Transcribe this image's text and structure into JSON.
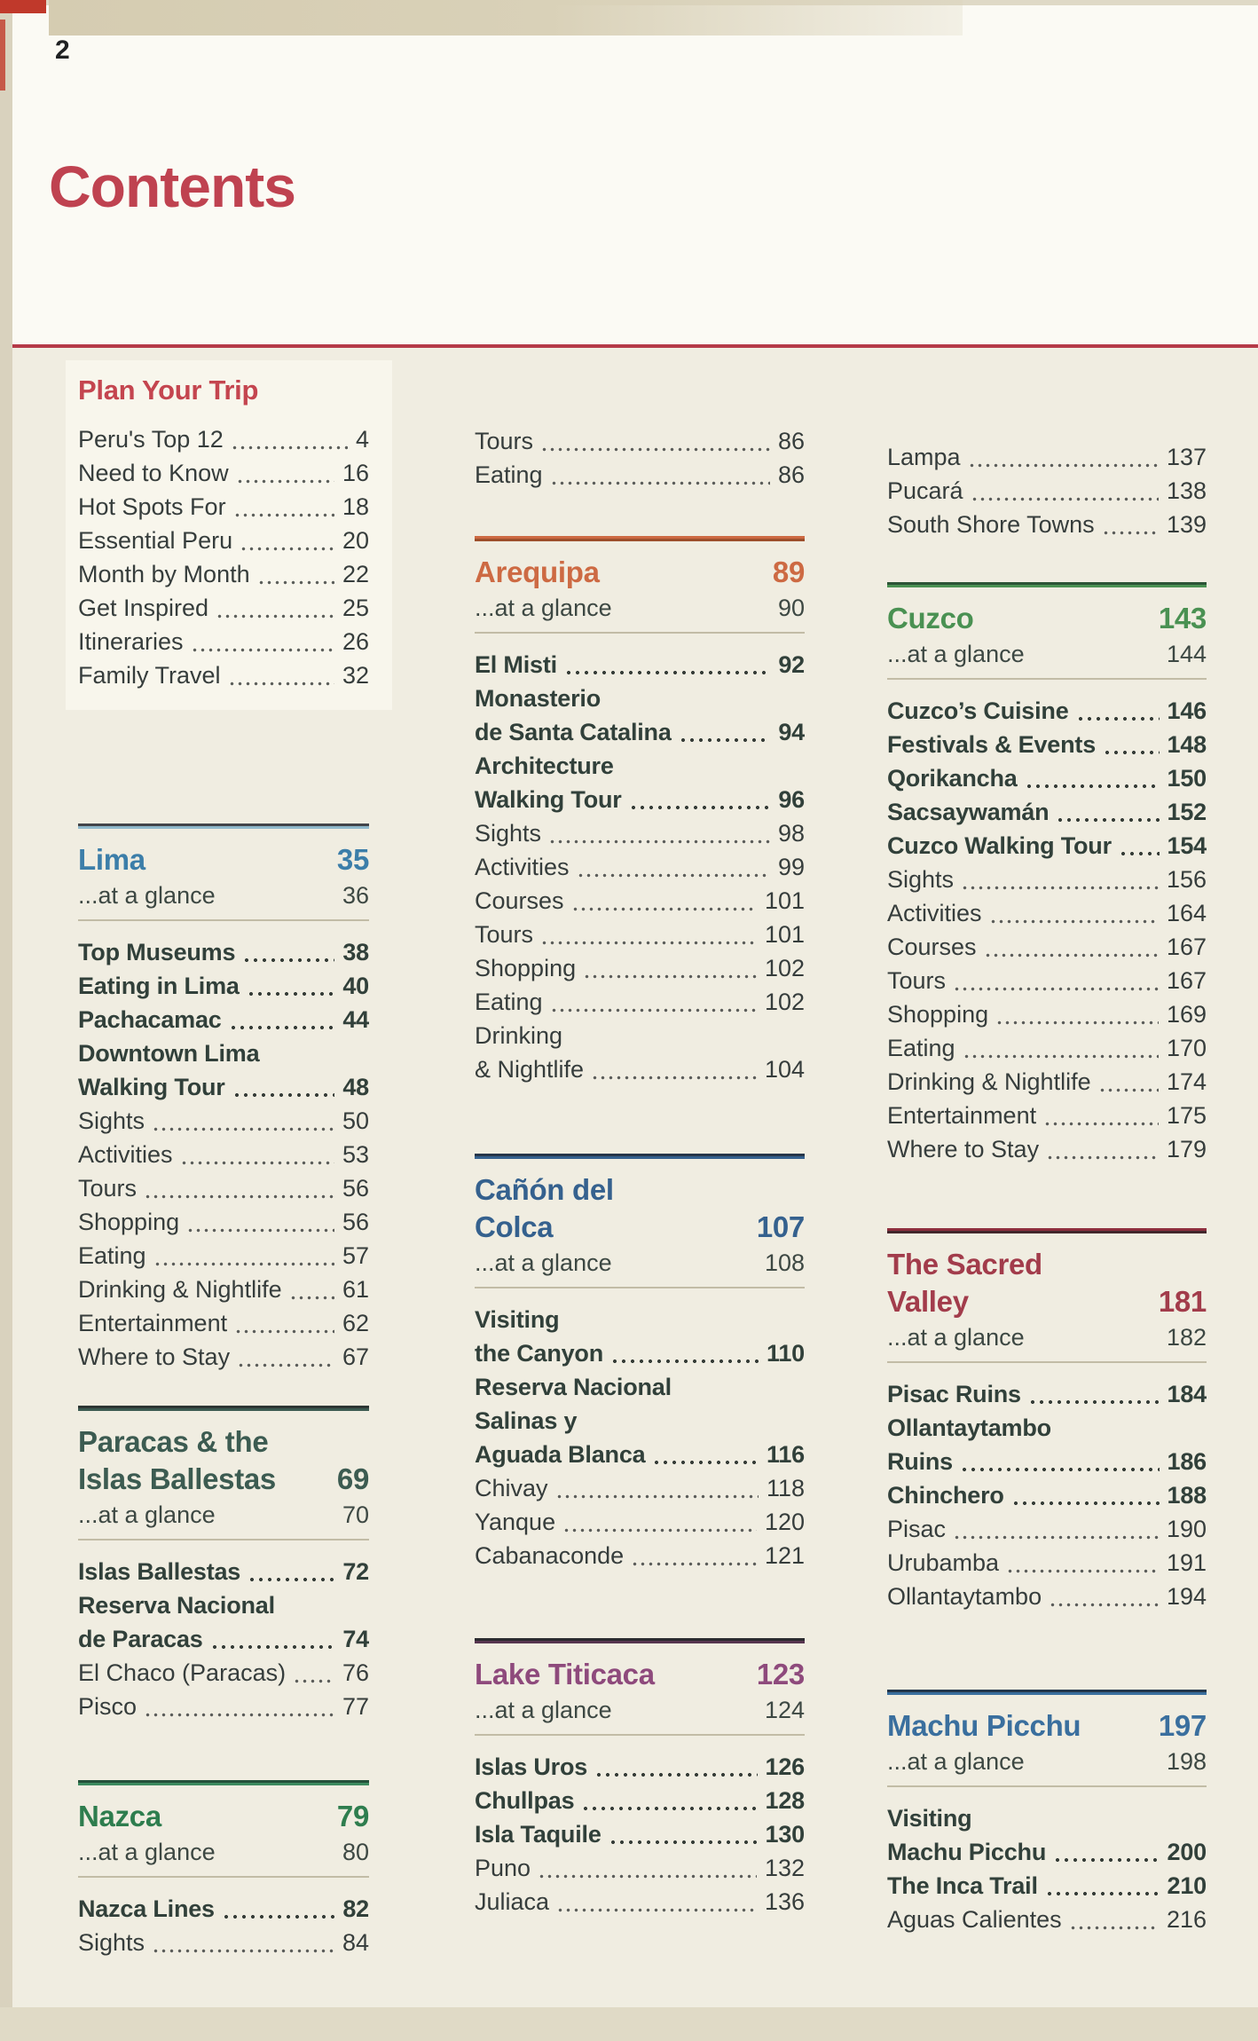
{
  "page": {
    "number": "2",
    "title": "Contents"
  },
  "colors": {
    "title_red": "#bf4250",
    "rule_red": "#b53a48",
    "cream_bg": "#f0ede1",
    "bold_entry": "#31403a",
    "regular_entry": "#363d3c"
  },
  "columns": [
    {
      "blocks": [
        {
          "kind": "intro",
          "slug": "plan",
          "accent": "#c4454f",
          "title": "Plan Your Trip",
          "items": [
            {
              "label": "Peru's Top 12",
              "page": "4"
            },
            {
              "label": "Need to Know",
              "page": "16"
            },
            {
              "label": "Hot Spots For",
              "page": "18"
            },
            {
              "label": "Essential Peru",
              "page": "20"
            },
            {
              "label": "Month by Month",
              "page": "22"
            },
            {
              "label": "Get Inspired",
              "page": "25"
            },
            {
              "label": "Itineraries",
              "page": "26"
            },
            {
              "label": "Family Travel",
              "page": "32"
            }
          ]
        },
        {
          "kind": "section",
          "slug": "lima",
          "accent": "#3c7ea9",
          "rule": [
            "#43454a",
            "#8fb9cb"
          ],
          "title_lines": [
            {
              "text": "Lima",
              "page": "35"
            }
          ],
          "glance": {
            "label": "...at a glance",
            "page": "36"
          },
          "items": [
            {
              "label": "Top Museums",
              "page": "38",
              "bold": true
            },
            {
              "label": "Eating in Lima",
              "page": "40",
              "bold": true
            },
            {
              "label": "Pachacamac",
              "page": "44",
              "bold": true
            },
            {
              "label": "Downtown Lima",
              "bold": true,
              "leader": false
            },
            {
              "label": "Walking Tour",
              "page": "48",
              "bold": true
            },
            {
              "label": "Sights",
              "page": "50"
            },
            {
              "label": "Activities",
              "page": "53"
            },
            {
              "label": "Tours",
              "page": "56"
            },
            {
              "label": "Shopping",
              "page": "56"
            },
            {
              "label": "Eating",
              "page": "57"
            },
            {
              "label": "Drinking & Nightlife",
              "page": "61"
            },
            {
              "label": "Entertainment",
              "page": "62"
            },
            {
              "label": "Where to Stay",
              "page": "67"
            }
          ]
        },
        {
          "kind": "section",
          "slug": "paracas",
          "accent": "#3c5b51",
          "rule": [
            "#2d3633",
            "#3c5b51"
          ],
          "title_lines": [
            {
              "text": "Paracas & the"
            },
            {
              "text": "Islas Ballestas",
              "page": "69"
            }
          ],
          "glance": {
            "label": "...at a glance",
            "page": "70"
          },
          "items": [
            {
              "label": "Islas Ballestas",
              "page": "72",
              "bold": true
            },
            {
              "label": "Reserva Nacional",
              "bold": true,
              "leader": false
            },
            {
              "label": "de Paracas",
              "page": "74",
              "bold": true
            },
            {
              "label": "El Chaco (Paracas)",
              "page": "76"
            },
            {
              "label": "Pisco",
              "page": "77"
            }
          ]
        },
        {
          "kind": "section",
          "slug": "nazca",
          "accent": "#2e7d4e",
          "rule": [
            "#24513a",
            "#3c8a5e"
          ],
          "title_lines": [
            {
              "text": "Nazca",
              "page": "79"
            }
          ],
          "glance": {
            "label": "...at a glance",
            "page": "80"
          },
          "items": [
            {
              "label": "Nazca Lines",
              "page": "82",
              "bold": true
            },
            {
              "label": "Sights",
              "page": "84"
            }
          ]
        }
      ]
    },
    {
      "blocks": [
        {
          "kind": "list",
          "slug": "tours-eating",
          "items": [
            {
              "label": "Tours",
              "page": "86"
            },
            {
              "label": "Eating",
              "page": "86"
            }
          ]
        },
        {
          "kind": "section",
          "slug": "arequipa",
          "accent": "#cd6a43",
          "rule": [
            "#cd6a43",
            "#9c4f2c"
          ],
          "title_lines": [
            {
              "text": "Arequipa",
              "page": "89"
            }
          ],
          "glance": {
            "label": "...at a glance",
            "page": "90"
          },
          "items": [
            {
              "label": "El Misti",
              "page": "92",
              "bold": true
            },
            {
              "label": "Monasterio",
              "bold": true,
              "leader": false
            },
            {
              "label": "de Santa Catalina",
              "page": "94",
              "bold": true
            },
            {
              "label": "Architecture",
              "bold": true,
              "leader": false
            },
            {
              "label": "Walking Tour",
              "page": "96",
              "bold": true
            },
            {
              "label": "Sights",
              "page": "98"
            },
            {
              "label": "Activities",
              "page": "99"
            },
            {
              "label": "Courses",
              "page": "101"
            },
            {
              "label": "Tours",
              "page": "101"
            },
            {
              "label": "Shopping",
              "page": "102"
            },
            {
              "label": "Eating",
              "page": "102"
            },
            {
              "label": "Drinking",
              "leader": false
            },
            {
              "label": "& Nightlife",
              "page": "104"
            }
          ]
        },
        {
          "kind": "section",
          "slug": "canon",
          "accent": "#35618e",
          "rule": [
            "#263649",
            "#35618e"
          ],
          "title_lines": [
            {
              "text": "Cañón del"
            },
            {
              "text": "Colca",
              "page": "107"
            }
          ],
          "glance": {
            "label": "...at a glance",
            "page": "108"
          },
          "items": [
            {
              "label": "Visiting",
              "bold": true,
              "leader": false
            },
            {
              "label": "the Canyon",
              "page": "110",
              "bold": true
            },
            {
              "label": "Reserva Nacional",
              "bold": true,
              "leader": false
            },
            {
              "label": "Salinas y",
              "bold": true,
              "leader": false
            },
            {
              "label": "Aguada Blanca",
              "page": "116",
              "bold": true
            },
            {
              "label": "Chivay",
              "page": "118"
            },
            {
              "label": "Yanque",
              "page": "120"
            },
            {
              "label": "Cabanaconde",
              "page": "121"
            }
          ]
        },
        {
          "kind": "section",
          "slug": "titicaca",
          "accent": "#8e4a7c",
          "rule": [
            "#2c2c30",
            "#573550"
          ],
          "title_lines": [
            {
              "text": "Lake Titicaca",
              "page": "123"
            }
          ],
          "glance": {
            "label": "...at a glance",
            "page": "124"
          },
          "items": [
            {
              "label": "Islas Uros",
              "page": "126",
              "bold": true
            },
            {
              "label": "Chullpas",
              "page": "128",
              "bold": true
            },
            {
              "label": "Isla Taquile",
              "page": "130",
              "bold": true
            },
            {
              "label": "Puno",
              "page": "132"
            },
            {
              "label": "Juliaca",
              "page": "136"
            }
          ]
        }
      ]
    },
    {
      "blocks": [
        {
          "kind": "list",
          "slug": "titicaca-towns",
          "items": [
            {
              "label": "Lampa",
              "page": "137"
            },
            {
              "label": "Pucará",
              "page": "138"
            },
            {
              "label": "South Shore Towns",
              "page": "139"
            }
          ]
        },
        {
          "kind": "section",
          "slug": "cuzco",
          "accent": "#4a9152",
          "rule": [
            "#2c5436",
            "#4a9152"
          ],
          "title_lines": [
            {
              "text": "Cuzco",
              "page": "143"
            }
          ],
          "glance": {
            "label": "...at a glance",
            "page": "144"
          },
          "items": [
            {
              "label": "Cuzco’s Cuisine",
              "page": "146",
              "bold": true
            },
            {
              "label": "Festivals & Events",
              "page": "148",
              "bold": true
            },
            {
              "label": "Qorikancha",
              "page": "150",
              "bold": true
            },
            {
              "label": "Sacsaywamán",
              "page": "152",
              "bold": true
            },
            {
              "label": "Cuzco Walking Tour",
              "page": "154",
              "bold": true
            },
            {
              "label": "Sights",
              "page": "156"
            },
            {
              "label": "Activities",
              "page": "164"
            },
            {
              "label": "Courses",
              "page": "167"
            },
            {
              "label": "Tours",
              "page": "167"
            },
            {
              "label": "Shopping",
              "page": "169"
            },
            {
              "label": "Eating",
              "page": "170"
            },
            {
              "label": "Drinking & Nightlife",
              "page": "174"
            },
            {
              "label": "Entertainment",
              "page": "175"
            },
            {
              "label": "Where to Stay",
              "page": "179"
            }
          ]
        },
        {
          "kind": "section",
          "slug": "sacred",
          "accent": "#a23c4b",
          "rule": [
            "#8e2f3e",
            "#42272c"
          ],
          "title_lines": [
            {
              "text": "The Sacred"
            },
            {
              "text": "Valley",
              "page": "181"
            }
          ],
          "glance": {
            "label": "...at a glance",
            "page": "182"
          },
          "items": [
            {
              "label": "Pisac Ruins",
              "page": "184",
              "bold": true
            },
            {
              "label": "Ollantaytambo",
              "bold": true,
              "leader": false
            },
            {
              "label": "Ruins",
              "page": "186",
              "bold": true
            },
            {
              "label": "Chinchero",
              "page": "188",
              "bold": true
            },
            {
              "label": "Pisac",
              "page": "190"
            },
            {
              "label": "Urubamba",
              "page": "191"
            },
            {
              "label": "Ollantaytambo",
              "page": "194"
            }
          ]
        },
        {
          "kind": "section",
          "slug": "machu",
          "accent": "#3a6f9e",
          "rule": [
            "#23374b",
            "#3a6f9e"
          ],
          "title_lines": [
            {
              "text": "Machu Picchu",
              "page": "197"
            }
          ],
          "glance": {
            "label": "...at a glance",
            "page": "198"
          },
          "items": [
            {
              "label": "Visiting",
              "bold": true,
              "leader": false
            },
            {
              "label": "Machu Picchu",
              "page": "200",
              "bold": true
            },
            {
              "label": "The Inca Trail",
              "page": "210",
              "bold": true
            },
            {
              "label": "Aguas Calientes",
              "page": "216"
            }
          ]
        }
      ]
    }
  ]
}
